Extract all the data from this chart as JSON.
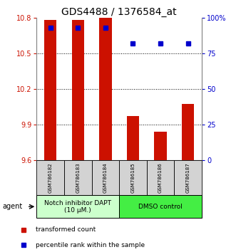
{
  "title": "GDS4488 / 1376584_at",
  "categories": [
    "GSM786182",
    "GSM786183",
    "GSM786184",
    "GSM786185",
    "GSM786186",
    "GSM786187"
  ],
  "bar_values": [
    10.78,
    10.78,
    10.8,
    9.97,
    9.84,
    10.07
  ],
  "bar_color": "#cc1100",
  "percentile_values": [
    93,
    93,
    93,
    82,
    82,
    82
  ],
  "percentile_color": "#0000cc",
  "ylim_left": [
    9.6,
    10.8
  ],
  "ylim_right": [
    0,
    100
  ],
  "yticks_left": [
    9.6,
    9.9,
    10.2,
    10.5,
    10.8
  ],
  "ytick_labels_left": [
    "9.6",
    "9.9",
    "10.2",
    "10.5",
    "10.8"
  ],
  "yticks_right": [
    0,
    25,
    50,
    75,
    100
  ],
  "ytick_labels_right": [
    "0",
    "25",
    "50",
    "75",
    "100%"
  ],
  "group1_label": "Notch inhibitor DAPT\n(10 μM.)",
  "group2_label": "DMSO control",
  "group1_color": "#ccffcc",
  "group2_color": "#44ee44",
  "agent_label": "agent",
  "legend_bar_label": "transformed count",
  "legend_dot_label": "percentile rank within the sample",
  "bar_bottom": 9.6,
  "title_fontsize": 10,
  "tick_fontsize": 7,
  "cat_fontsize": 5,
  "group_fontsize": 6.5,
  "legend_fontsize": 6.5,
  "agent_fontsize": 7
}
